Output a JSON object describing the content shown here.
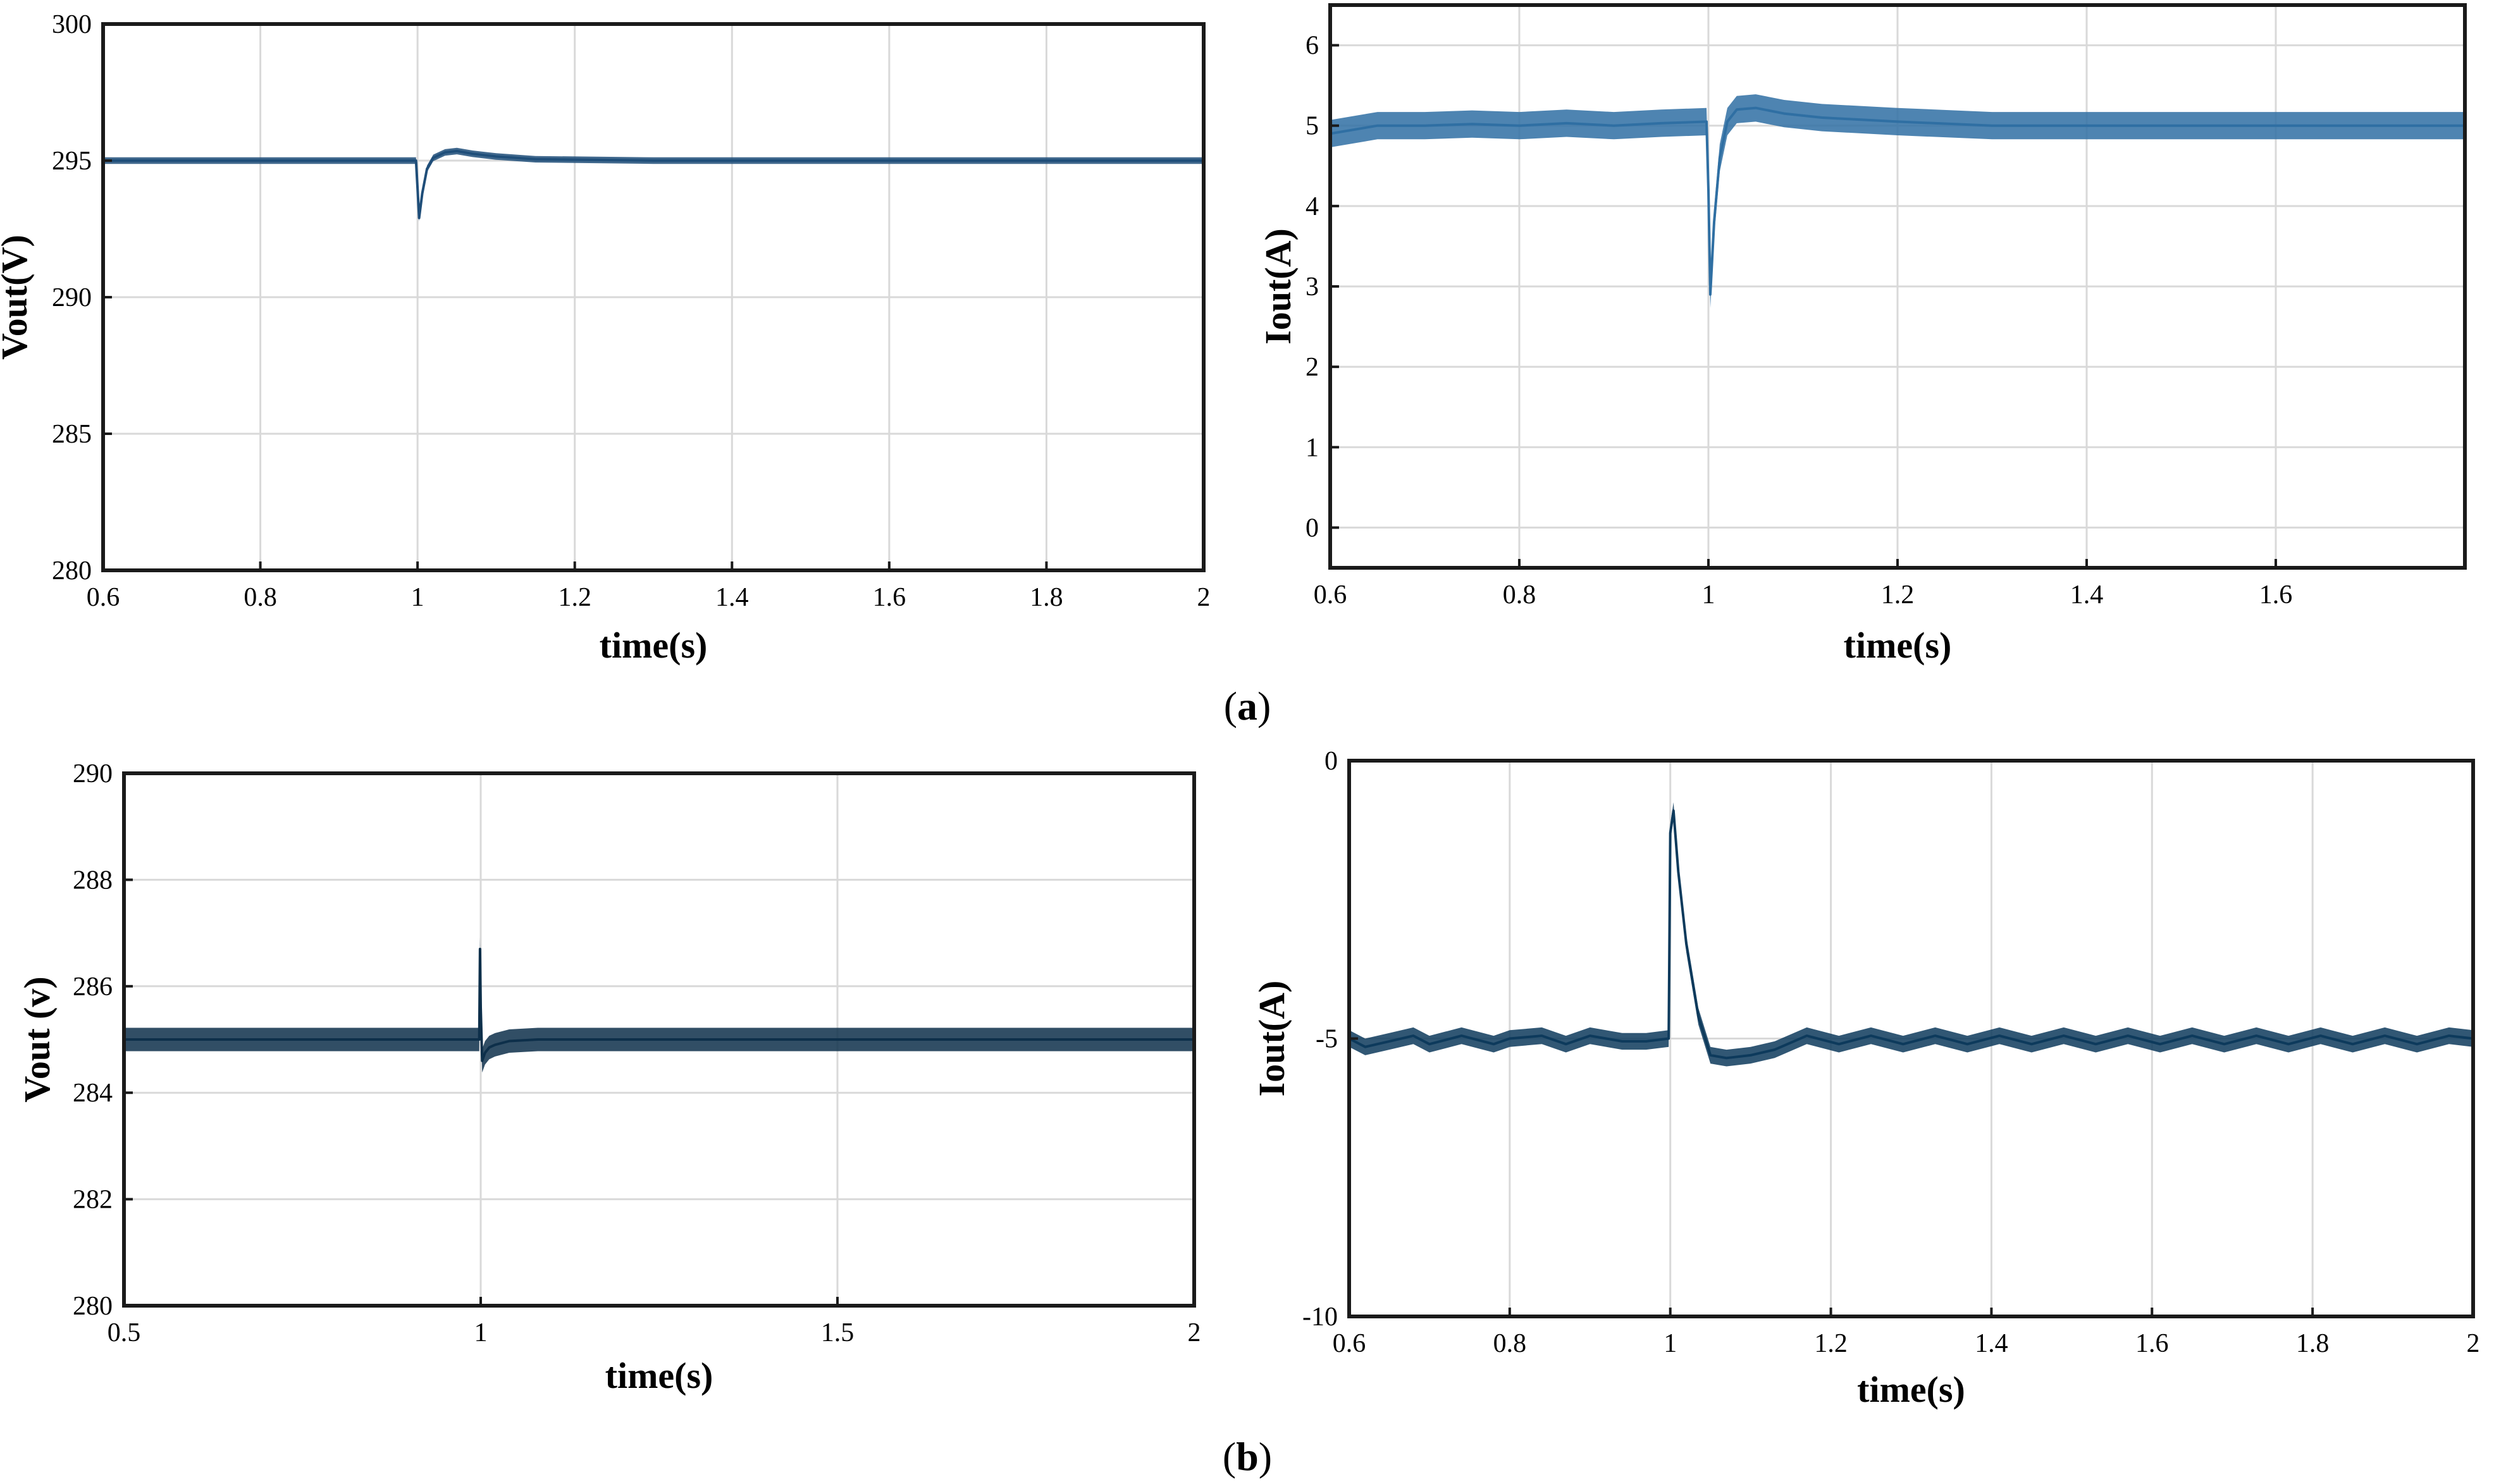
{
  "figure": {
    "panel_labels": [
      {
        "paren_open": "(",
        "letter": "a",
        "paren_close": ")"
      },
      {
        "paren_open": "(",
        "letter": "b",
        "paren_close": ")"
      }
    ]
  },
  "chart_data": [
    {
      "id": "a-vout",
      "type": "line",
      "title": "",
      "xlabel": "time(s)",
      "ylabel": "Vout(V)",
      "xlim": [
        0.6,
        2.0
      ],
      "ylim": [
        280,
        300
      ],
      "x_ticks": [
        0.6,
        0.8,
        1.0,
        1.2,
        1.4,
        1.6,
        1.8,
        2.0
      ],
      "x_tick_labels": [
        "0.6",
        "0.8",
        "1",
        "1.2",
        "1.4",
        "1.6",
        "1.8",
        "2"
      ],
      "y_ticks": [
        280,
        285,
        290,
        295,
        300
      ],
      "y_tick_labels": [
        "280",
        "285",
        "290",
        "295",
        "300"
      ],
      "grid": true,
      "series": [
        {
          "name": "Vout",
          "color": "#1f4e79",
          "ripple": 0.12,
          "x": [
            0.6,
            0.7,
            0.8,
            0.9,
            0.998,
            1.0,
            1.002,
            1.006,
            1.012,
            1.02,
            1.035,
            1.05,
            1.07,
            1.1,
            1.15,
            1.3,
            1.6,
            2.0
          ],
          "y": [
            295.0,
            295.0,
            295.0,
            295.0,
            295.0,
            294.0,
            292.9,
            293.8,
            294.7,
            295.1,
            295.3,
            295.35,
            295.25,
            295.15,
            295.05,
            295.0,
            295.0,
            295.0
          ]
        }
      ]
    },
    {
      "id": "a-iout",
      "type": "line",
      "title": "",
      "xlabel": "time(s)",
      "ylabel": "Iout(A)",
      "xlim": [
        0.6,
        1.8
      ],
      "ylim": [
        -0.5,
        6.5
      ],
      "x_ticks": [
        0.6,
        0.8,
        1.0,
        1.2,
        1.4,
        1.6
      ],
      "x_tick_labels": [
        "0.6",
        "0.8",
        "1",
        "1.2",
        "1.4",
        "1.6"
      ],
      "y_ticks": [
        0,
        1,
        2,
        3,
        4,
        5,
        6
      ],
      "y_tick_labels": [
        "0",
        "1",
        "2",
        "3",
        "4",
        "5",
        "6"
      ],
      "grid": true,
      "series": [
        {
          "name": "Iout",
          "color": "#2f6fa3",
          "ripple": 0.17,
          "x": [
            0.6,
            0.65,
            0.7,
            0.75,
            0.8,
            0.85,
            0.9,
            0.95,
            0.998,
            1.0,
            1.002,
            1.006,
            1.012,
            1.02,
            1.03,
            1.05,
            1.08,
            1.12,
            1.2,
            1.3,
            1.4,
            1.5,
            1.6,
            1.7,
            1.8
          ],
          "y": [
            4.9,
            5.0,
            5.0,
            5.02,
            5.0,
            5.03,
            5.0,
            5.03,
            5.05,
            4.2,
            2.9,
            3.8,
            4.6,
            5.05,
            5.2,
            5.22,
            5.15,
            5.1,
            5.05,
            5.0,
            5.0,
            5.0,
            5.0,
            5.0,
            5.0
          ]
        }
      ]
    },
    {
      "id": "b-vout",
      "type": "line",
      "title": "",
      "xlabel": "time(s)",
      "ylabel": "Vout (v)",
      "xlim": [
        0.5,
        2.0
      ],
      "ylim": [
        280,
        290
      ],
      "x_ticks": [
        0.5,
        1.0,
        1.5,
        2.0
      ],
      "x_tick_labels": [
        "0.5",
        "1",
        "1.5",
        "2"
      ],
      "y_ticks": [
        280,
        282,
        284,
        286,
        288,
        290
      ],
      "y_tick_labels": [
        "280",
        "282",
        "284",
        "286",
        "288",
        "290"
      ],
      "grid": true,
      "series": [
        {
          "name": "Vout",
          "color": "#0d2f4a",
          "ripple": 0.22,
          "x": [
            0.5,
            0.6,
            0.7,
            0.8,
            0.9,
            0.998,
            0.999,
            1.0,
            1.002,
            1.006,
            1.012,
            1.02,
            1.04,
            1.08,
            1.2,
            1.5,
            2.0
          ],
          "y": [
            285.0,
            285.0,
            285.0,
            285.0,
            285.0,
            285.0,
            286.7,
            285.6,
            284.6,
            284.75,
            284.85,
            284.9,
            284.97,
            285.0,
            285.0,
            285.0,
            285.0
          ]
        }
      ]
    },
    {
      "id": "b-iout",
      "type": "line",
      "title": "",
      "xlabel": "time(s)",
      "ylabel": "Iout(A)",
      "xlim": [
        0.6,
        2.0
      ],
      "ylim": [
        -10,
        0
      ],
      "x_ticks": [
        0.6,
        0.8,
        1.0,
        1.2,
        1.4,
        1.6,
        1.8,
        2.0
      ],
      "x_tick_labels": [
        "0.6",
        "0.8",
        "1",
        "1.2",
        "1.4",
        "1.6",
        "1.8",
        "2"
      ],
      "y_ticks": [
        -10,
        -5,
        0
      ],
      "y_tick_labels": [
        "-10",
        "-5",
        "0"
      ],
      "grid": true,
      "series": [
        {
          "name": "Iout",
          "color": "#0d3a5c",
          "ripple": 0.15,
          "x": [
            0.6,
            0.62,
            0.65,
            0.68,
            0.7,
            0.74,
            0.78,
            0.8,
            0.84,
            0.87,
            0.9,
            0.94,
            0.97,
            0.998,
            1.0,
            1.004,
            1.01,
            1.02,
            1.035,
            1.05,
            1.07,
            1.1,
            1.13,
            1.17,
            1.21,
            1.25,
            1.29,
            1.33,
            1.37,
            1.41,
            1.45,
            1.49,
            1.53,
            1.57,
            1.61,
            1.65,
            1.69,
            1.73,
            1.77,
            1.81,
            1.85,
            1.89,
            1.93,
            1.97,
            2.0
          ],
          "y": [
            -5.0,
            -5.15,
            -5.05,
            -4.95,
            -5.1,
            -4.95,
            -5.1,
            -5.0,
            -4.95,
            -5.1,
            -4.95,
            -5.05,
            -5.05,
            -5.0,
            -1.3,
            -0.9,
            -2.0,
            -3.3,
            -4.6,
            -5.3,
            -5.35,
            -5.3,
            -5.2,
            -4.95,
            -5.1,
            -4.95,
            -5.1,
            -4.95,
            -5.1,
            -4.95,
            -5.1,
            -4.95,
            -5.1,
            -4.95,
            -5.1,
            -4.95,
            -5.1,
            -4.95,
            -5.1,
            -4.95,
            -5.1,
            -4.95,
            -5.1,
            -4.95,
            -5.0
          ]
        }
      ]
    }
  ]
}
